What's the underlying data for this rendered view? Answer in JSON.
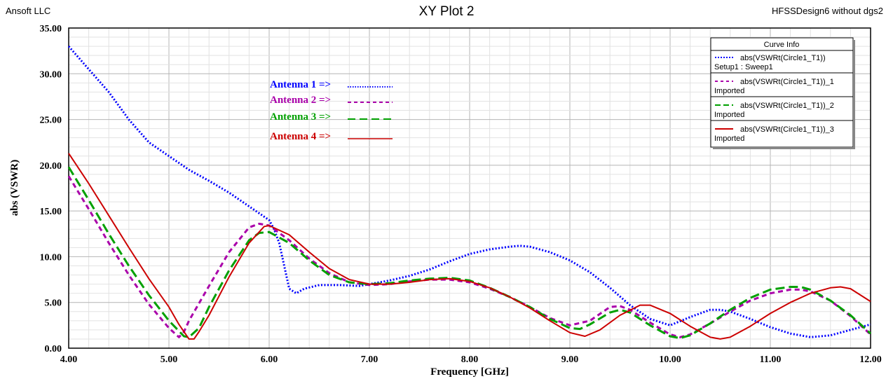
{
  "header": {
    "company": "Ansoft LLC",
    "title": "XY Plot 2",
    "design": "HFSSDesign6 without dgs2"
  },
  "chart_data": {
    "type": "line",
    "title": "XY Plot 2",
    "xlabel": "Frequency [GHz]",
    "ylabel": "abs (VSWR)",
    "xlim": [
      4.0,
      12.0
    ],
    "ylim": [
      0.0,
      35.0
    ],
    "x_ticks": [
      "4.00",
      "5.00",
      "6.00",
      "7.00",
      "8.00",
      "9.00",
      "10.00",
      "11.00",
      "12.00"
    ],
    "y_ticks": [
      "0.00",
      "5.00",
      "10.00",
      "15.00",
      "20.00",
      "25.00",
      "30.00",
      "35.00"
    ],
    "grid": true,
    "legend": {
      "title": "Curve Info",
      "placement": "top-right"
    },
    "series": [
      {
        "name": "abs(VSWRt(Circle1_T1))",
        "sub": "Setup1 : Sweep1",
        "annotation": "Antenna 1 =>",
        "color": "#0000ff",
        "dash": "dotted",
        "points": [
          [
            4.0,
            33.0
          ],
          [
            4.2,
            30.5
          ],
          [
            4.4,
            28.0
          ],
          [
            4.6,
            25.0
          ],
          [
            4.8,
            22.5
          ],
          [
            5.0,
            21.0
          ],
          [
            5.2,
            19.5
          ],
          [
            5.4,
            18.3
          ],
          [
            5.6,
            17.0
          ],
          [
            5.8,
            15.5
          ],
          [
            6.0,
            14.0
          ],
          [
            6.05,
            13.0
          ],
          [
            6.1,
            11.5
          ],
          [
            6.15,
            9.0
          ],
          [
            6.2,
            6.5
          ],
          [
            6.27,
            6.0
          ],
          [
            6.35,
            6.5
          ],
          [
            6.5,
            6.9
          ],
          [
            6.7,
            6.9
          ],
          [
            6.9,
            6.8
          ],
          [
            7.0,
            7.0
          ],
          [
            7.2,
            7.4
          ],
          [
            7.4,
            7.9
          ],
          [
            7.6,
            8.6
          ],
          [
            7.8,
            9.5
          ],
          [
            8.0,
            10.3
          ],
          [
            8.2,
            10.8
          ],
          [
            8.4,
            11.1
          ],
          [
            8.5,
            11.2
          ],
          [
            8.6,
            11.1
          ],
          [
            8.8,
            10.5
          ],
          [
            9.0,
            9.6
          ],
          [
            9.2,
            8.3
          ],
          [
            9.4,
            6.6
          ],
          [
            9.6,
            4.7
          ],
          [
            9.8,
            3.2
          ],
          [
            10.0,
            2.5
          ],
          [
            10.2,
            3.4
          ],
          [
            10.4,
            4.2
          ],
          [
            10.5,
            4.2
          ],
          [
            10.6,
            4.0
          ],
          [
            10.8,
            3.2
          ],
          [
            11.0,
            2.3
          ],
          [
            11.2,
            1.6
          ],
          [
            11.4,
            1.2
          ],
          [
            11.6,
            1.4
          ],
          [
            11.8,
            2.0
          ],
          [
            12.0,
            2.6
          ]
        ]
      },
      {
        "name": "abs(VSWRt(Circle1_T1))_1",
        "sub": "Imported",
        "annotation": "Antenna 2 =>",
        "color": "#aa00aa",
        "dash": "dashed",
        "points": [
          [
            4.0,
            18.8
          ],
          [
            4.2,
            15.2
          ],
          [
            4.4,
            11.5
          ],
          [
            4.6,
            8.0
          ],
          [
            4.8,
            4.8
          ],
          [
            5.0,
            2.2
          ],
          [
            5.1,
            1.2
          ],
          [
            5.15,
            1.8
          ],
          [
            5.2,
            3.0
          ],
          [
            5.4,
            6.8
          ],
          [
            5.6,
            10.5
          ],
          [
            5.8,
            13.2
          ],
          [
            5.9,
            13.6
          ],
          [
            6.0,
            13.4
          ],
          [
            6.2,
            11.8
          ],
          [
            6.4,
            9.8
          ],
          [
            6.6,
            8.2
          ],
          [
            6.8,
            7.2
          ],
          [
            7.0,
            6.9
          ],
          [
            7.2,
            7.0
          ],
          [
            7.4,
            7.3
          ],
          [
            7.6,
            7.5
          ],
          [
            7.8,
            7.5
          ],
          [
            8.0,
            7.2
          ],
          [
            8.2,
            6.5
          ],
          [
            8.4,
            5.6
          ],
          [
            8.6,
            4.5
          ],
          [
            8.8,
            3.3
          ],
          [
            9.0,
            2.5
          ],
          [
            9.2,
            3.0
          ],
          [
            9.4,
            4.5
          ],
          [
            9.5,
            4.6
          ],
          [
            9.6,
            4.2
          ],
          [
            9.8,
            2.8
          ],
          [
            10.0,
            1.5
          ],
          [
            10.1,
            1.2
          ],
          [
            10.2,
            1.5
          ],
          [
            10.4,
            2.7
          ],
          [
            10.6,
            4.0
          ],
          [
            10.8,
            5.2
          ],
          [
            11.0,
            6.0
          ],
          [
            11.2,
            6.4
          ],
          [
            11.3,
            6.4
          ],
          [
            11.4,
            6.2
          ],
          [
            11.6,
            5.2
          ],
          [
            11.8,
            3.5
          ],
          [
            12.0,
            1.5
          ]
        ]
      },
      {
        "name": "abs(VSWRt(Circle1_T1))_2",
        "sub": "Imported",
        "annotation": "Antenna 3 =>",
        "color": "#00a000",
        "dash": "dashed-long",
        "points": [
          [
            4.0,
            19.8
          ],
          [
            4.2,
            16.2
          ],
          [
            4.4,
            12.5
          ],
          [
            4.6,
            9.0
          ],
          [
            4.8,
            5.8
          ],
          [
            5.0,
            3.0
          ],
          [
            5.15,
            1.3
          ],
          [
            5.2,
            1.2
          ],
          [
            5.3,
            2.2
          ],
          [
            5.4,
            4.5
          ],
          [
            5.6,
            8.5
          ],
          [
            5.8,
            11.8
          ],
          [
            5.9,
            12.6
          ],
          [
            6.0,
            12.7
          ],
          [
            6.2,
            11.5
          ],
          [
            6.4,
            9.6
          ],
          [
            6.6,
            8.0
          ],
          [
            6.8,
            7.2
          ],
          [
            7.0,
            7.0
          ],
          [
            7.2,
            7.1
          ],
          [
            7.4,
            7.4
          ],
          [
            7.6,
            7.6
          ],
          [
            7.8,
            7.7
          ],
          [
            8.0,
            7.4
          ],
          [
            8.2,
            6.6
          ],
          [
            8.4,
            5.6
          ],
          [
            8.6,
            4.5
          ],
          [
            8.8,
            3.2
          ],
          [
            9.0,
            2.2
          ],
          [
            9.1,
            2.1
          ],
          [
            9.2,
            2.6
          ],
          [
            9.4,
            3.9
          ],
          [
            9.5,
            4.2
          ],
          [
            9.6,
            3.9
          ],
          [
            9.8,
            2.5
          ],
          [
            10.0,
            1.3
          ],
          [
            10.1,
            1.1
          ],
          [
            10.2,
            1.4
          ],
          [
            10.4,
            2.7
          ],
          [
            10.6,
            4.2
          ],
          [
            10.8,
            5.5
          ],
          [
            11.0,
            6.4
          ],
          [
            11.2,
            6.7
          ],
          [
            11.3,
            6.7
          ],
          [
            11.4,
            6.4
          ],
          [
            11.6,
            5.2
          ],
          [
            11.8,
            3.6
          ],
          [
            12.0,
            1.6
          ]
        ]
      },
      {
        "name": "abs(VSWRt(Circle1_T1))_3",
        "sub": "Imported",
        "annotation": "Antenna 4 =>",
        "color": "#cc0000",
        "dash": "solid",
        "points": [
          [
            4.0,
            21.3
          ],
          [
            4.2,
            18.0
          ],
          [
            4.4,
            14.5
          ],
          [
            4.6,
            11.0
          ],
          [
            4.8,
            7.6
          ],
          [
            5.0,
            4.5
          ],
          [
            5.1,
            2.6
          ],
          [
            5.2,
            1.0
          ],
          [
            5.25,
            1.0
          ],
          [
            5.3,
            1.8
          ],
          [
            5.4,
            3.6
          ],
          [
            5.6,
            7.8
          ],
          [
            5.8,
            11.5
          ],
          [
            5.95,
            13.3
          ],
          [
            6.0,
            13.4
          ],
          [
            6.2,
            12.4
          ],
          [
            6.4,
            10.5
          ],
          [
            6.6,
            8.7
          ],
          [
            6.8,
            7.5
          ],
          [
            7.0,
            7.0
          ],
          [
            7.2,
            7.0
          ],
          [
            7.4,
            7.2
          ],
          [
            7.6,
            7.5
          ],
          [
            7.8,
            7.6
          ],
          [
            8.0,
            7.3
          ],
          [
            8.2,
            6.6
          ],
          [
            8.4,
            5.6
          ],
          [
            8.6,
            4.4
          ],
          [
            8.8,
            3.0
          ],
          [
            9.0,
            1.7
          ],
          [
            9.15,
            1.3
          ],
          [
            9.3,
            2.0
          ],
          [
            9.5,
            3.6
          ],
          [
            9.7,
            4.7
          ],
          [
            9.8,
            4.7
          ],
          [
            10.0,
            3.8
          ],
          [
            10.2,
            2.4
          ],
          [
            10.4,
            1.2
          ],
          [
            10.5,
            1.0
          ],
          [
            10.6,
            1.2
          ],
          [
            10.8,
            2.4
          ],
          [
            11.0,
            3.8
          ],
          [
            11.2,
            5.0
          ],
          [
            11.4,
            6.0
          ],
          [
            11.6,
            6.6
          ],
          [
            11.7,
            6.7
          ],
          [
            11.8,
            6.5
          ],
          [
            12.0,
            5.1
          ]
        ]
      }
    ]
  }
}
